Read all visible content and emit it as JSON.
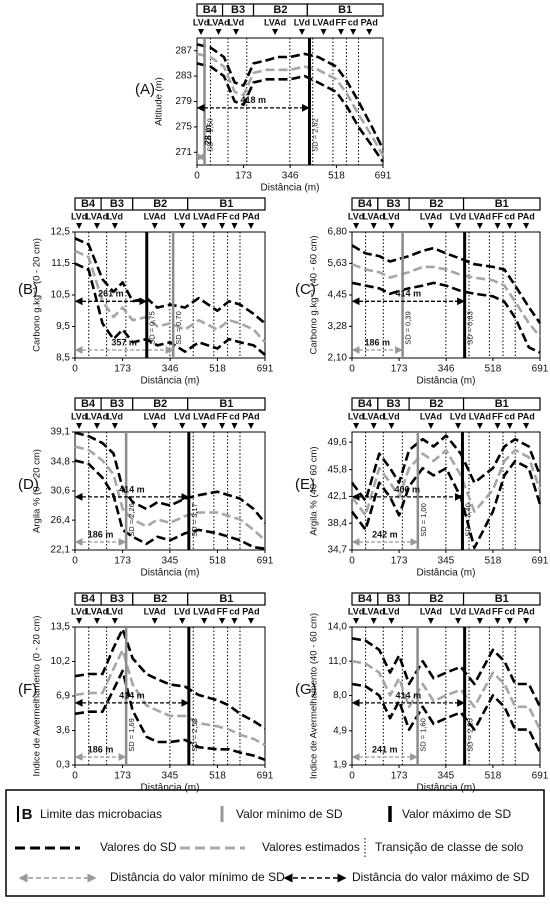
{
  "chart_data": [
    {
      "type": "line",
      "panel": "(A)",
      "ylabel": "Altitude (m)",
      "xlabel": "Distância (m)",
      "xlim": [
        0,
        691
      ],
      "ylim": [
        269,
        289
      ],
      "xticks": [
        0,
        173,
        346,
        518,
        691
      ],
      "yticks": [
        271,
        275,
        279,
        283,
        287
      ],
      "basins": [
        "B4",
        "B3",
        "B2",
        "B1"
      ],
      "basin_bounds": [
        0,
        95,
        210,
        410,
        691
      ],
      "soils": [
        "LVd",
        "LVAd",
        "LVd",
        "LVAd",
        "LVd",
        "LVAd",
        "FF",
        "cd",
        "PAd"
      ],
      "soil_x": [
        15,
        80,
        145,
        290,
        390,
        470,
        535,
        580,
        640
      ],
      "transitions": [
        50,
        115,
        185,
        345,
        430,
        505,
        555,
        600
      ],
      "x": [
        0,
        50,
        100,
        140,
        173,
        210,
        260,
        300,
        346,
        400,
        450,
        518,
        560,
        600,
        650,
        691
      ],
      "series": [
        {
          "color": "#000000",
          "values": [
            288,
            287.5,
            286,
            282,
            281.5,
            285,
            285.5,
            286,
            286,
            286.5,
            286,
            284.5,
            282,
            279,
            275,
            271.5
          ]
        },
        {
          "color": "#a6a6a6",
          "values": [
            286.5,
            286,
            284.5,
            280.5,
            280,
            283.5,
            284,
            284,
            284,
            284.5,
            284,
            282.5,
            280,
            277,
            273.5,
            270.5
          ]
        },
        {
          "color": "#000000",
          "values": [
            285,
            284.5,
            283,
            279,
            278.5,
            282,
            282.5,
            282.5,
            282.5,
            283,
            282,
            280.5,
            278,
            275,
            272,
            269.5
          ]
        }
      ],
      "min_sd": {
        "x": 28,
        "label": "SD = 1,50",
        "distance": "28 m"
      },
      "max_sd": {
        "x": 418,
        "label": "SD = 2,62",
        "distance": "418 m"
      }
    },
    {
      "type": "line",
      "panel": "(B)",
      "ylabel": "Carbono g.kg⁻¹ (0 - 20 cm)",
      "xlabel": "Distância (m)",
      "xlim": [
        0,
        691
      ],
      "ylim": [
        8.5,
        12.5
      ],
      "xticks": [
        0,
        173,
        346,
        518,
        691
      ],
      "yticks": [
        {
          "value": 8.5,
          "label": "8,5"
        },
        {
          "value": 9.5,
          "label": "9,5"
        },
        {
          "value": 10.5,
          "label": "10,5"
        },
        {
          "value": 11.5,
          "label": "11,5"
        },
        {
          "value": 12.5,
          "label": "12,5"
        }
      ],
      "basins": [
        "B4",
        "B3",
        "B2",
        "B1"
      ],
      "basin_bounds": [
        0,
        95,
        210,
        410,
        691
      ],
      "soils": [
        "LVd",
        "LVAd",
        "LVd",
        "LVAd",
        "LVd",
        "LVAd",
        "FF",
        "cd",
        "PAd"
      ],
      "soil_x": [
        15,
        80,
        145,
        290,
        390,
        470,
        535,
        580,
        640
      ],
      "transitions": [
        50,
        115,
        185,
        345,
        430,
        505,
        555,
        600
      ],
      "x": [
        0,
        50,
        100,
        140,
        173,
        210,
        260,
        300,
        346,
        400,
        450,
        518,
        560,
        600,
        650,
        691
      ],
      "series": [
        {
          "color": "#000000",
          "values": [
            12.3,
            12.1,
            11,
            10.6,
            10.9,
            10.3,
            10.4,
            10.1,
            10.2,
            10.1,
            10.4,
            10,
            10.3,
            10.2,
            9.9,
            9.6
          ]
        },
        {
          "color": "#a6a6a6",
          "values": [
            11.9,
            11.7,
            10.3,
            9.8,
            10.1,
            9.7,
            9.8,
            9.5,
            9.6,
            9.4,
            9.7,
            9.4,
            9.7,
            9.6,
            9.4,
            9
          ]
        },
        {
          "color": "#000000",
          "values": [
            11.5,
            11.3,
            9.6,
            9.1,
            9.4,
            9,
            9.1,
            8.9,
            9,
            8.7,
            9,
            8.8,
            9.1,
            9,
            8.9,
            8.6
          ]
        }
      ],
      "min_sd": {
        "x": 357,
        "label": "SD = 0,70",
        "distance": "357 m"
      },
      "max_sd": {
        "x": 261,
        "label": "SD = 0,75",
        "distance": "261 m"
      }
    },
    {
      "type": "line",
      "panel": "(C)",
      "ylabel": "Carbono g.kg⁻¹ (40 - 60 cm)",
      "xlabel": "Distância (m)",
      "xlim": [
        0,
        691
      ],
      "ylim": [
        2.1,
        6.8
      ],
      "xticks": [
        0,
        173,
        346,
        518,
        691
      ],
      "yticks": [
        {
          "value": 2.1,
          "label": "2,10"
        },
        {
          "value": 3.28,
          "label": "3,28"
        },
        {
          "value": 4.45,
          "label": "4,45"
        },
        {
          "value": 5.63,
          "label": "5,63"
        },
        {
          "value": 6.8,
          "label": "6,80"
        }
      ],
      "basins": [
        "B4",
        "B3",
        "B2",
        "B1"
      ],
      "basin_bounds": [
        0,
        95,
        210,
        410,
        691
      ],
      "soils": [
        "LVd",
        "LVAd",
        "LVd",
        "LVAd",
        "LVd",
        "LVAd",
        "FF",
        "cd",
        "PAd"
      ],
      "soil_x": [
        15,
        80,
        145,
        290,
        390,
        470,
        535,
        580,
        640
      ],
      "transitions": [
        50,
        115,
        185,
        345,
        430,
        505,
        555,
        600
      ],
      "x": [
        0,
        50,
        100,
        140,
        173,
        210,
        260,
        300,
        346,
        400,
        450,
        518,
        560,
        600,
        650,
        691
      ],
      "series": [
        {
          "color": "#000000",
          "values": [
            6.3,
            6,
            5.9,
            5.7,
            5.8,
            5.9,
            6.1,
            6.2,
            6,
            5.8,
            5.6,
            5.5,
            5.4,
            4.8,
            4,
            3.4
          ]
        },
        {
          "color": "#a6a6a6",
          "values": [
            5.6,
            5.4,
            5.3,
            5.1,
            5.2,
            5.3,
            5.5,
            5.5,
            5.4,
            5.2,
            5.1,
            5,
            4.8,
            4.2,
            3.4,
            2.9
          ]
        },
        {
          "color": "#000000",
          "values": [
            4.9,
            4.8,
            4.7,
            4.5,
            4.6,
            4.7,
            4.8,
            4.9,
            4.8,
            4.6,
            4.5,
            4.4,
            4.2,
            3.6,
            2.5,
            2.3
          ]
        }
      ],
      "min_sd": {
        "x": 186,
        "label": "SD = 0,39",
        "distance": "186 m"
      },
      "max_sd": {
        "x": 414,
        "label": "SD = 0,63",
        "distance": "414 m"
      }
    },
    {
      "type": "line",
      "panel": "(D)",
      "ylabel": "Argila % (0 - 20 cm)",
      "xlabel": "Distância (m)",
      "xlim": [
        0,
        691
      ],
      "ylim": [
        22.1,
        39.1
      ],
      "xticks": [
        0,
        173,
        345,
        518,
        691
      ],
      "yticks": [
        {
          "value": 22.1,
          "label": "22,1"
        },
        {
          "value": 26.4,
          "label": "26,4"
        },
        {
          "value": 30.6,
          "label": "30,6"
        },
        {
          "value": 34.8,
          "label": "34,8"
        },
        {
          "value": 39.1,
          "label": "39,1"
        }
      ],
      "basins": [
        "B4",
        "B3",
        "B2",
        "B1"
      ],
      "basin_bounds": [
        0,
        95,
        210,
        410,
        691
      ],
      "soils": [
        "LVd",
        "LVAd",
        "LVd",
        "LVAd",
        "LVd",
        "LVAd",
        "FF",
        "cd",
        "PAd"
      ],
      "soil_x": [
        15,
        80,
        145,
        290,
        390,
        470,
        535,
        580,
        640
      ],
      "transitions": [
        50,
        115,
        185,
        345,
        430,
        505,
        555,
        600
      ],
      "x": [
        0,
        50,
        100,
        140,
        173,
        210,
        260,
        300,
        346,
        400,
        450,
        518,
        560,
        600,
        650,
        691
      ],
      "series": [
        {
          "color": "#000000",
          "values": [
            39,
            38.5,
            37.5,
            36,
            31,
            29,
            28,
            29,
            28.5,
            29.5,
            30,
            30.5,
            30,
            29.5,
            28,
            26
          ]
        },
        {
          "color": "#a6a6a6",
          "values": [
            37,
            36.5,
            35,
            33,
            28,
            26.5,
            25.5,
            26.5,
            26,
            27,
            27.5,
            27.5,
            27,
            26.5,
            25,
            23.5
          ]
        },
        {
          "color": "#000000",
          "values": [
            35,
            34.5,
            32.5,
            30,
            25,
            24,
            23,
            24,
            23.5,
            24.5,
            25,
            24.5,
            24,
            23.5,
            22.5,
            22.3
          ]
        }
      ],
      "min_sd": {
        "x": 186,
        "label": "SD = 2,26",
        "distance": "186 m"
      },
      "max_sd": {
        "x": 414,
        "label": "SD = 3,17",
        "distance": "414 m"
      }
    },
    {
      "type": "line",
      "panel": "(E)",
      "ylabel": "Argila % (40 - 60 cm)",
      "xlabel": "Distância (m)",
      "xlim": [
        0,
        691
      ],
      "ylim": [
        34.7,
        51
      ],
      "xticks": [
        0,
        173,
        345,
        518,
        691
      ],
      "yticks": [
        {
          "value": 34.7,
          "label": "34,7"
        },
        {
          "value": 38.4,
          "label": "38,4"
        },
        {
          "value": 42.1,
          "label": "42,1"
        },
        {
          "value": 45.8,
          "label": "45,8"
        },
        {
          "value": 49.6,
          "label": "49,6"
        }
      ],
      "basins": [
        "B4",
        "B3",
        "B2",
        "B1"
      ],
      "basin_bounds": [
        0,
        95,
        210,
        410,
        691
      ],
      "soils": [
        "LVd",
        "LVAd",
        "LVd",
        "LVAd",
        "LVd",
        "LVAd",
        "FF",
        "cd",
        "PAd"
      ],
      "soil_x": [
        15,
        80,
        145,
        290,
        390,
        470,
        535,
        580,
        640
      ],
      "transitions": [
        50,
        115,
        185,
        345,
        430,
        505,
        555,
        600
      ],
      "x": [
        0,
        50,
        100,
        140,
        173,
        210,
        260,
        300,
        346,
        400,
        450,
        518,
        560,
        600,
        650,
        691
      ],
      "series": [
        {
          "color": "#000000",
          "values": [
            44,
            41.5,
            48,
            46,
            44,
            48.5,
            50,
            49,
            50.5,
            48,
            44,
            46,
            49,
            50,
            49,
            45
          ]
        },
        {
          "color": "#a6a6a6",
          "values": [
            42,
            39.5,
            46,
            44,
            42,
            46,
            48,
            47,
            48.5,
            45,
            40,
            43,
            47,
            48.5,
            47.5,
            43
          ]
        },
        {
          "color": "#000000",
          "values": [
            40,
            37.5,
            44,
            42,
            39.5,
            43.5,
            46,
            45,
            46,
            42,
            35,
            40,
            45,
            47,
            46,
            41
          ]
        }
      ],
      "min_sd": {
        "x": 242,
        "label": "SD = 1,00",
        "distance": "242 m"
      },
      "max_sd": {
        "x": 406,
        "label": "SD = 3,40",
        "distance": "406 m"
      }
    },
    {
      "type": "line",
      "panel": "(F)",
      "ylabel": "Indice de Avermelhamento (0 - 20 cm)",
      "xlabel": "Distância (m)",
      "xlim": [
        0,
        691
      ],
      "ylim": [
        0.3,
        13.5
      ],
      "xticks": [
        0,
        173,
        345,
        518,
        691
      ],
      "yticks": [
        {
          "value": 0.3,
          "label": "0,3"
        },
        {
          "value": 3.6,
          "label": "3,6"
        },
        {
          "value": 6.9,
          "label": "6,9"
        },
        {
          "value": 10.2,
          "label": "10,2"
        },
        {
          "value": 13.5,
          "label": "13,5"
        }
      ],
      "basins": [
        "B4",
        "B3",
        "B2",
        "B1"
      ],
      "basin_bounds": [
        0,
        95,
        210,
        410,
        691
      ],
      "soils": [
        "LVd",
        "LVAd",
        "LVd",
        "LVAd",
        "LVd",
        "LVAd",
        "FF",
        "cd",
        "PAd"
      ],
      "soil_x": [
        15,
        80,
        145,
        290,
        390,
        470,
        535,
        580,
        640
      ],
      "transitions": [
        50,
        115,
        185,
        345,
        430,
        505,
        555,
        600
      ],
      "x": [
        0,
        50,
        100,
        140,
        173,
        210,
        260,
        300,
        346,
        400,
        450,
        518,
        560,
        600,
        650,
        691
      ],
      "series": [
        {
          "color": "#000000",
          "values": [
            8.8,
            9,
            9,
            11.5,
            13.3,
            10.5,
            9,
            8.5,
            8,
            7.8,
            7,
            6.5,
            6,
            5.2,
            4.5,
            3.8
          ]
        },
        {
          "color": "#a6a6a6",
          "values": [
            7,
            7.2,
            7.2,
            9.5,
            11.3,
            8,
            6,
            5.5,
            5,
            5,
            4.3,
            4,
            3.7,
            3.2,
            2.8,
            2.2
          ]
        },
        {
          "color": "#000000",
          "values": [
            5.2,
            5.4,
            5.4,
            7.5,
            9.3,
            5.5,
            3,
            2.5,
            2.5,
            2.7,
            2,
            1.8,
            1.8,
            1.5,
            1.2,
            0.8
          ]
        }
      ],
      "min_sd": {
        "x": 186,
        "label": "SD = 1,69",
        "distance": "186 m"
      },
      "max_sd": {
        "x": 414,
        "label": "SD = 2,53",
        "distance": "414 m"
      }
    },
    {
      "type": "line",
      "panel": "(G)",
      "ylabel": "Indice de Avermelhamento (40 - 60 cm)",
      "xlabel": "Distância (m)",
      "xlim": [
        0,
        691
      ],
      "ylim": [
        1.9,
        14
      ],
      "xticks": [
        0,
        173,
        345,
        518,
        691
      ],
      "yticks": [
        {
          "value": 1.9,
          "label": "1,9"
        },
        {
          "value": 4.9,
          "label": "4,9"
        },
        {
          "value": 8,
          "label": "8,0"
        },
        {
          "value": 11,
          "label": "11,0"
        },
        {
          "value": 14,
          "label": "14,0"
        }
      ],
      "basins": [
        "B4",
        "B3",
        "B2",
        "B1"
      ],
      "basin_bounds": [
        0,
        95,
        210,
        410,
        691
      ],
      "soils": [
        "LVd",
        "LVAd",
        "LVd",
        "LVAd",
        "LVd",
        "LVAd",
        "FF",
        "cd",
        "PAd"
      ],
      "soil_x": [
        15,
        80,
        145,
        290,
        390,
        470,
        535,
        580,
        640
      ],
      "transitions": [
        50,
        115,
        185,
        345,
        430,
        505,
        555,
        600
      ],
      "x": [
        0,
        50,
        100,
        140,
        173,
        210,
        260,
        300,
        346,
        400,
        450,
        518,
        560,
        600,
        650,
        691
      ],
      "series": [
        {
          "color": "#000000",
          "values": [
            13,
            12.8,
            12,
            10,
            11.5,
            9,
            11,
            9.5,
            10,
            10.5,
            9,
            12,
            11,
            9,
            9,
            7
          ]
        },
        {
          "color": "#a6a6a6",
          "values": [
            11,
            10.8,
            10,
            8,
            9.5,
            7,
            9,
            7.5,
            8,
            8.5,
            7,
            10,
            9,
            7,
            7,
            5
          ]
        },
        {
          "color": "#000000",
          "values": [
            9,
            8.8,
            8,
            6,
            7.5,
            5,
            7,
            5.5,
            6,
            6.5,
            5,
            8,
            7,
            5,
            5,
            3
          ]
        }
      ],
      "min_sd": {
        "x": 241,
        "label": "SD = 1,60",
        "distance": "241 m"
      },
      "max_sd": {
        "x": 414,
        "label": "SD = 2,25",
        "distance": "414 m"
      }
    }
  ],
  "legend": {
    "symbol": "B",
    "items": [
      "Limite das microbacias",
      "Valor mínimo de SD",
      "Valor máximo de SD",
      "Valores do SD",
      "Valores estimados",
      "Transição de classe de solo",
      "Distância do valor mínimo de SD",
      "Distância do valor máximo de SD"
    ]
  }
}
